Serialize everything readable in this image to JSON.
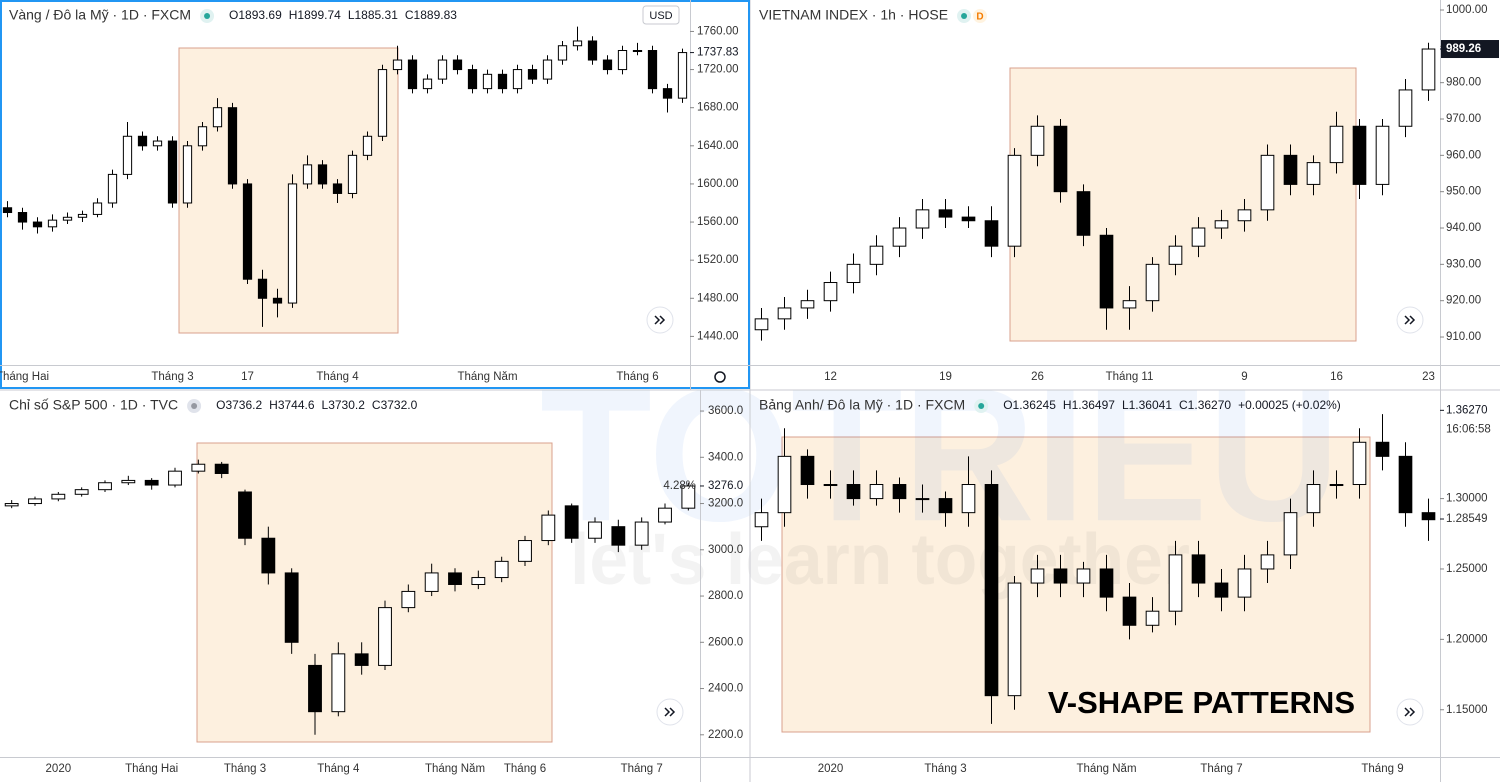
{
  "watermark": {
    "title": "TOTRIEU",
    "tagline": "let's learn together"
  },
  "chart_data": [
    {
      "type": "candlestick",
      "title": "Vàng / Đô la Mỹ · 1D · FXCM",
      "currency": "USD",
      "ohlc_labels": [
        "O1893.69",
        "H1899.74",
        "L1885.31",
        "C1889.83"
      ],
      "categories": [
        null,
        "Tháng Hai",
        null,
        null,
        null,
        null,
        null,
        null,
        null,
        null,
        null,
        "Tháng 3",
        null,
        null,
        null,
        null,
        "17",
        null,
        null,
        null,
        null,
        null,
        "Tháng 4",
        null,
        null,
        null,
        null,
        null,
        null,
        null,
        null,
        null,
        "Tháng Năm",
        null,
        null,
        null,
        null,
        null,
        null,
        null,
        null,
        null,
        "Tháng 6",
        null,
        null,
        null
      ],
      "open": [
        1575,
        1570,
        1560,
        1555,
        1562,
        1565,
        1568,
        1580,
        1610,
        1650,
        1640,
        1645,
        1580,
        1640,
        1660,
        1680,
        1600,
        1500,
        1480,
        1475,
        1600,
        1620,
        1600,
        1590,
        1630,
        1650,
        1720,
        1730,
        1700,
        1710,
        1730,
        1720,
        1700,
        1715,
        1700,
        1720,
        1710,
        1730,
        1745,
        1750,
        1730,
        1720,
        1740,
        1740,
        1700,
        1690
      ],
      "high": [
        1582,
        1575,
        1565,
        1568,
        1570,
        1572,
        1585,
        1615,
        1665,
        1655,
        1650,
        1650,
        1645,
        1665,
        1690,
        1685,
        1605,
        1510,
        1490,
        1610,
        1630,
        1625,
        1605,
        1635,
        1655,
        1725,
        1745,
        1735,
        1715,
        1735,
        1735,
        1725,
        1720,
        1720,
        1725,
        1725,
        1735,
        1750,
        1765,
        1755,
        1735,
        1745,
        1748,
        1745,
        1705,
        1742
      ],
      "low": [
        1565,
        1552,
        1548,
        1550,
        1558,
        1560,
        1565,
        1575,
        1605,
        1635,
        1635,
        1575,
        1575,
        1635,
        1655,
        1595,
        1495,
        1450,
        1460,
        1470,
        1595,
        1595,
        1580,
        1585,
        1625,
        1645,
        1715,
        1695,
        1695,
        1705,
        1715,
        1695,
        1695,
        1695,
        1695,
        1705,
        1705,
        1725,
        1740,
        1725,
        1715,
        1715,
        1735,
        1695,
        1675,
        1685
      ],
      "close": [
        1570,
        1560,
        1555,
        1562,
        1565,
        1568,
        1580,
        1610,
        1650,
        1640,
        1645,
        1580,
        1640,
        1660,
        1680,
        1600,
        1500,
        1480,
        1475,
        1600,
        1620,
        1600,
        1590,
        1630,
        1650,
        1720,
        1730,
        1700,
        1710,
        1730,
        1720,
        1700,
        1715,
        1700,
        1720,
        1710,
        1730,
        1745,
        1750,
        1730,
        1720,
        1740,
        1740,
        1700,
        1690,
        1737.83
      ],
      "ylim": [
        1410,
        1793
      ],
      "yticks": [
        {
          "value": 1440,
          "label": "1440.00"
        },
        {
          "value": 1480,
          "label": "1480.00"
        },
        {
          "value": 1520,
          "label": "1520.00"
        },
        {
          "value": 1560,
          "label": "1560.00"
        },
        {
          "value": 1600,
          "label": "1600.00"
        },
        {
          "value": 1640,
          "label": "1640.00"
        },
        {
          "value": 1680,
          "label": "1680.00"
        },
        {
          "value": 1720,
          "label": "1720.00"
        },
        {
          "value": 1760,
          "label": "1760.00"
        }
      ],
      "price_label": {
        "value": 1737.83,
        "label": "1737.83"
      }
    },
    {
      "type": "candlestick",
      "title": "VIETNAM INDEX · 1h · HOSE",
      "badge": "D",
      "categories": [
        null,
        null,
        null,
        "12",
        null,
        null,
        null,
        null,
        "19",
        null,
        null,
        null,
        "26",
        null,
        null,
        null,
        "Tháng 11",
        null,
        null,
        null,
        null,
        "9",
        null,
        null,
        null,
        "16",
        null,
        null,
        null,
        "23"
      ],
      "open": [
        912,
        915,
        918,
        920,
        925,
        930,
        935,
        940,
        945,
        943,
        942,
        935,
        960,
        968,
        950,
        938,
        918,
        920,
        930,
        935,
        940,
        942,
        945,
        960,
        952,
        958,
        968,
        952,
        968,
        978
      ],
      "high": [
        918,
        921,
        923,
        928,
        933,
        938,
        943,
        948,
        948,
        946,
        946,
        962,
        971,
        970,
        952,
        940,
        924,
        932,
        938,
        943,
        945,
        948,
        963,
        963,
        960,
        972,
        970,
        970,
        981,
        991
      ],
      "low": [
        909,
        912,
        915,
        917,
        922,
        927,
        932,
        937,
        940,
        940,
        932,
        932,
        957,
        947,
        935,
        912,
        912,
        917,
        927,
        932,
        937,
        939,
        942,
        949,
        949,
        955,
        948,
        949,
        965,
        975
      ],
      "close": [
        915,
        918,
        920,
        925,
        930,
        935,
        940,
        945,
        943,
        942,
        935,
        960,
        968,
        950,
        938,
        918,
        920,
        930,
        935,
        940,
        942,
        945,
        960,
        952,
        958,
        968,
        952,
        968,
        978,
        989.26
      ],
      "ylim": [
        902.3,
        1002.75
      ],
      "yticks": [
        {
          "value": 910,
          "label": "910.00"
        },
        {
          "value": 920,
          "label": "920.00"
        },
        {
          "value": 930,
          "label": "930.00"
        },
        {
          "value": 940,
          "label": "940.00"
        },
        {
          "value": 950,
          "label": "950.00"
        },
        {
          "value": 960,
          "label": "960.00"
        },
        {
          "value": 970,
          "label": "970.00"
        },
        {
          "value": 980,
          "label": "980.00"
        },
        {
          "value": 990,
          "label": "990.00"
        },
        {
          "value": 1000,
          "label": "1000.00"
        }
      ],
      "price_label": {
        "value": 989.26,
        "label": "989.26"
      }
    },
    {
      "type": "candlestick",
      "title": "Chỉ số S&P 500 · 1D · TVC",
      "ohlc_labels": [
        "O3736.2",
        "H3744.6",
        "L3730.2",
        "C3732.0"
      ],
      "categories": [
        null,
        null,
        "2020",
        null,
        null,
        null,
        "Tháng Hai",
        null,
        null,
        null,
        "Tháng 3",
        null,
        null,
        null,
        "Tháng 4",
        null,
        null,
        null,
        null,
        "Tháng Năm",
        null,
        null,
        "Tháng 6",
        null,
        null,
        null,
        null,
        "Tháng 7",
        null,
        null
      ],
      "open": [
        3190,
        3200,
        3220,
        3240,
        3260,
        3290,
        3300,
        3280,
        3340,
        3370,
        3250,
        3050,
        2900,
        2500,
        2300,
        2550,
        2500,
        2750,
        2820,
        2900,
        2850,
        2880,
        2950,
        3040,
        3190,
        3050,
        3100,
        3020,
        3120,
        3180
      ],
      "high": [
        3215,
        3230,
        3250,
        3270,
        3300,
        3320,
        3310,
        3355,
        3390,
        3380,
        3260,
        3100,
        2920,
        2550,
        2600,
        2600,
        2780,
        2850,
        2940,
        2920,
        2910,
        2970,
        3060,
        3170,
        3200,
        3140,
        3130,
        3140,
        3200,
        3290
      ],
      "low": [
        3180,
        3190,
        3210,
        3230,
        3250,
        3280,
        3260,
        3270,
        3330,
        3310,
        3020,
        2850,
        2550,
        2200,
        2280,
        2460,
        2480,
        2730,
        2800,
        2820,
        2830,
        2860,
        2930,
        3020,
        3030,
        3030,
        2990,
        3000,
        3110,
        3170
      ],
      "close": [
        3200,
        3220,
        3240,
        3260,
        3290,
        3300,
        3280,
        3340,
        3370,
        3330,
        3050,
        2900,
        2600,
        2300,
        2550,
        2500,
        2750,
        2820,
        2900,
        2850,
        2880,
        2950,
        3040,
        3150,
        3050,
        3120,
        3020,
        3120,
        3180,
        3276
      ],
      "ylim": [
        2104,
        3691
      ],
      "yticks": [
        {
          "value": 2200,
          "label": "2200.0"
        },
        {
          "value": 2400,
          "label": "2400.0"
        },
        {
          "value": 2600,
          "label": "2600.0"
        },
        {
          "value": 2800,
          "label": "2800.0"
        },
        {
          "value": 3000,
          "label": "3000.0"
        },
        {
          "value": 3200,
          "label": "3200.0"
        },
        {
          "value": 3400,
          "label": "3400.0"
        },
        {
          "value": 3600,
          "label": "3600.0"
        }
      ],
      "price_label": {
        "value": 3276,
        "label": "3276.0"
      },
      "price_change": "4.28%"
    },
    {
      "type": "candlestick",
      "title": "Bảng Anh/ Đô la Mỹ · 1D · FXCM",
      "ohlc_labels": [
        "O1.36245",
        "H1.36497",
        "L1.36041",
        "C1.36270",
        "+0.00025 (+0.02%)"
      ],
      "categories": [
        null,
        null,
        null,
        "2020",
        null,
        null,
        null,
        null,
        "Tháng 3",
        null,
        null,
        null,
        null,
        null,
        null,
        "Tháng Năm",
        null,
        null,
        null,
        null,
        "Tháng 7",
        null,
        null,
        null,
        null,
        null,
        null,
        "Tháng 9",
        null,
        null
      ],
      "open": [
        1.28,
        1.29,
        1.33,
        1.31,
        1.31,
        1.3,
        1.31,
        1.3,
        1.3,
        1.29,
        1.31,
        1.16,
        1.24,
        1.25,
        1.24,
        1.25,
        1.23,
        1.21,
        1.22,
        1.26,
        1.24,
        1.23,
        1.25,
        1.26,
        1.29,
        1.31,
        1.31,
        1.34,
        1.33,
        1.29
      ],
      "high": [
        1.3,
        1.35,
        1.335,
        1.32,
        1.32,
        1.32,
        1.315,
        1.31,
        1.305,
        1.33,
        1.32,
        1.245,
        1.26,
        1.26,
        1.255,
        1.26,
        1.24,
        1.23,
        1.27,
        1.27,
        1.25,
        1.26,
        1.27,
        1.3,
        1.32,
        1.32,
        1.35,
        1.36,
        1.34,
        1.3
      ],
      "low": [
        1.27,
        1.28,
        1.3,
        1.3,
        1.295,
        1.295,
        1.29,
        1.29,
        1.28,
        1.28,
        1.14,
        1.15,
        1.23,
        1.23,
        1.23,
        1.22,
        1.2,
        1.205,
        1.21,
        1.23,
        1.22,
        1.22,
        1.24,
        1.25,
        1.28,
        1.3,
        1.3,
        1.32,
        1.28,
        1.27
      ],
      "close": [
        1.29,
        1.33,
        1.31,
        1.31,
        1.3,
        1.31,
        1.3,
        1.3,
        1.29,
        1.31,
        1.16,
        1.24,
        1.25,
        1.24,
        1.25,
        1.23,
        1.21,
        1.22,
        1.26,
        1.24,
        1.23,
        1.25,
        1.26,
        1.29,
        1.31,
        1.31,
        1.34,
        1.33,
        1.29,
        1.285
      ],
      "ylim": [
        1.11643,
        1.37714
      ],
      "yticks": [
        {
          "value": 1.15,
          "label": "1.15000"
        },
        {
          "value": 1.2,
          "label": "1.20000"
        },
        {
          "value": 1.25,
          "label": "1.25000"
        },
        {
          "value": 1.3,
          "label": "1.30000"
        }
      ],
      "price_label": {
        "value": 1.3627,
        "label": "1.36270"
      },
      "price_time": "16:06:58",
      "last_label": {
        "value": 1.28549,
        "label": "1.28549"
      },
      "annotation": "V-SHAPE PATTERNS"
    }
  ]
}
